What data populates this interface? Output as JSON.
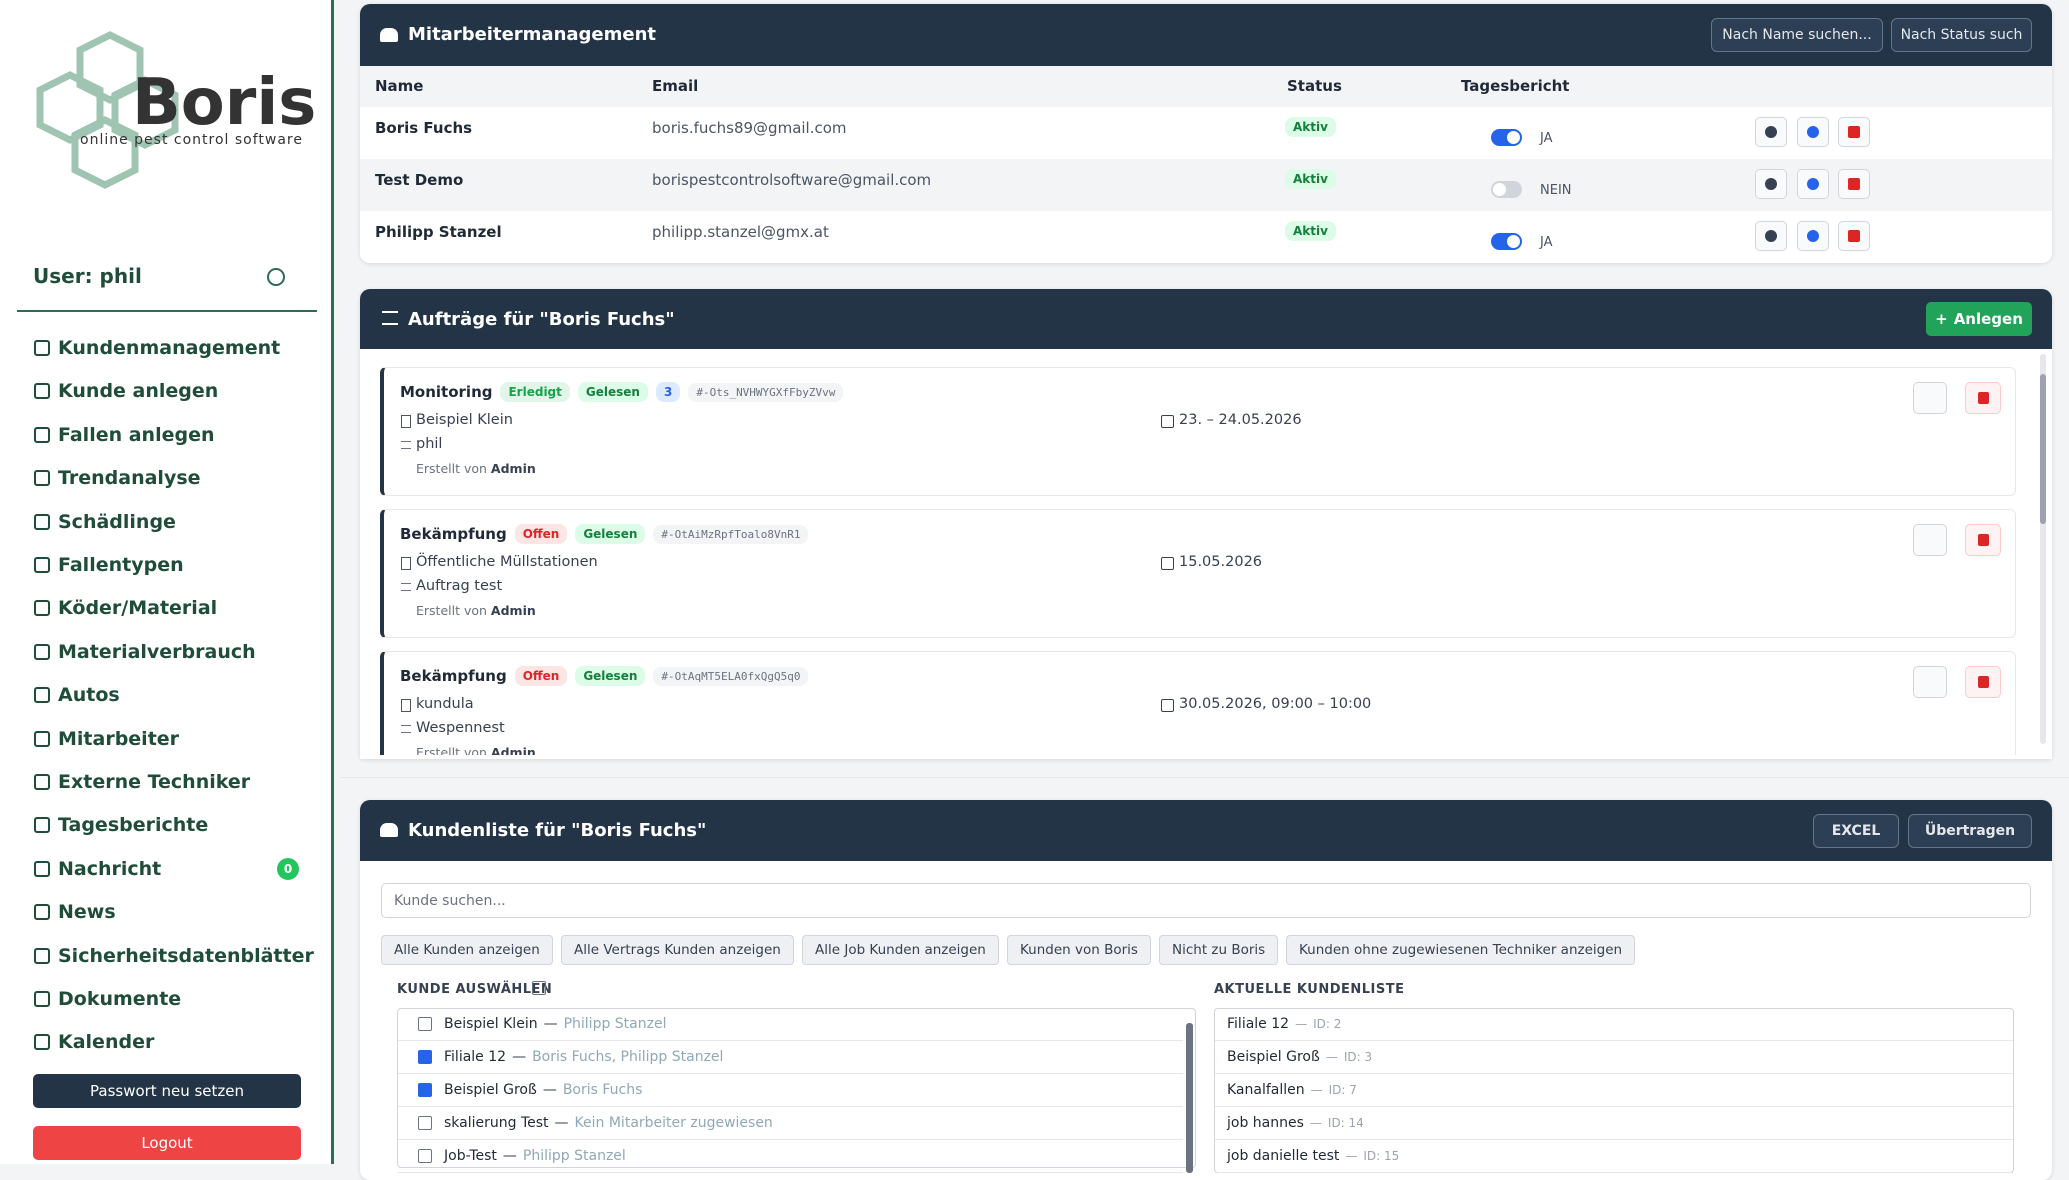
{
  "sidebar": {
    "logo_name": "Boris",
    "logo_tagline": "online pest control software",
    "user": "User: phil",
    "menu": [
      "Kundenmanagement",
      "Kunde anlegen",
      "Fallen anlegen",
      "Trendanalyse",
      "Schädlinge",
      "Fallentypen",
      "Köder/Material",
      "Materialverbrauch",
      "Autos",
      "Mitarbeiter",
      "Externe Techniker",
      "Tagesberichte",
      "Nachricht",
      "News",
      "Sicherheitsdatenblätter",
      "Dokumente",
      "Kalender"
    ],
    "badge_item": 12,
    "badge": "0",
    "password_button": "Passwort neu setzen",
    "logout_button": "Logout"
  },
  "employees": {
    "title": "Mitarbeitermanagement",
    "search_name": "Nach Name suchen...",
    "search_status": "Nach Status such",
    "columns": [
      "Name",
      "Email",
      "Status",
      "Tagesbericht"
    ],
    "rows": [
      {
        "name": "Boris Fuchs",
        "email": "boris.fuchs89@gmail.com",
        "status": "Aktiv",
        "report_on": true,
        "report": "JA"
      },
      {
        "name": "Test Demo",
        "email": "borispestcontrolsoftware@gmail.com",
        "status": "Aktiv",
        "report_on": false,
        "report": "NEIN"
      },
      {
        "name": "Philipp Stanzel",
        "email": "philipp.stanzel@gmx.at",
        "status": "Aktiv",
        "report_on": true,
        "report": "JA"
      }
    ]
  },
  "orders": {
    "title": "Aufträge für \"Boris Fuchs\"",
    "create": "Anlegen",
    "items": [
      {
        "type": "Monitoring",
        "status": "Erledigt",
        "status_color": "#16a34a",
        "read": "Gelesen",
        "comments": "3",
        "id": "#-Ots_NVHWYGXfFbyZVvw",
        "customer": "Beispiel Klein",
        "description": "phil",
        "date": "23. – 24.05.2026",
        "created_prefix": "Erstellt von",
        "created_by": "Admin"
      },
      {
        "type": "Bekämpfung",
        "status": "Offen",
        "status_color": "#dc2626",
        "read": "Gelesen",
        "comments": null,
        "id": "#-OtAiMzRpfToalo8VnR1",
        "customer": "Öffentliche Müllstationen",
        "description": "Auftrag test",
        "date": "15.05.2026",
        "created_prefix": "Erstellt von",
        "created_by": "Admin"
      },
      {
        "type": "Bekämpfung",
        "status": "Offen",
        "status_color": "#dc2626",
        "read": "Gelesen",
        "comments": null,
        "id": "#-OtAqMT5ELA0fxQgQ5q0",
        "customer": "kundula",
        "description": "Wespennest",
        "date": "30.05.2026, 09:00 – 10:00",
        "created_prefix": "Erstellt von",
        "created_by": "Admin"
      }
    ]
  },
  "customers": {
    "title": "Kundenliste für \"Boris Fuchs\"",
    "excel": "EXCEL",
    "transfer": "Übertragen",
    "search_placeholder": "Kunde suchen...",
    "filters": [
      "Alle Kunden anzeigen",
      "Alle Vertrags Kunden anzeigen",
      "Alle Job Kunden anzeigen",
      "Kunden von Boris",
      "Nicht zu Boris",
      "Kunden ohne zugewiesenen Techniker anzeigen"
    ],
    "select_label": "KUNDE AUSWÄHLEN",
    "current_label": "AKTUELLE KUNDENLISTE",
    "select_list": [
      {
        "name": "Beispiel Klein",
        "assigned": "Philipp Stanzel",
        "checked": false
      },
      {
        "name": "Filiale 12",
        "assigned": "Boris Fuchs, Philipp Stanzel",
        "checked": true
      },
      {
        "name": "Beispiel Groß",
        "assigned": "Boris Fuchs",
        "checked": true
      },
      {
        "name": "skalierung Test",
        "assigned": "Kein Mitarbeiter zugewiesen",
        "checked": false
      },
      {
        "name": "Job-Test",
        "assigned": "Philipp Stanzel",
        "checked": false
      }
    ],
    "current_list": [
      {
        "name": "Filiale 12",
        "id": "ID: 2"
      },
      {
        "name": "Beispiel Groß",
        "id": "ID: 3"
      },
      {
        "name": "Kanalfallen",
        "id": "ID: 7"
      },
      {
        "name": "job hannes",
        "id": "ID: 14"
      },
      {
        "name": "job danielle test",
        "id": "ID: 15"
      }
    ]
  }
}
